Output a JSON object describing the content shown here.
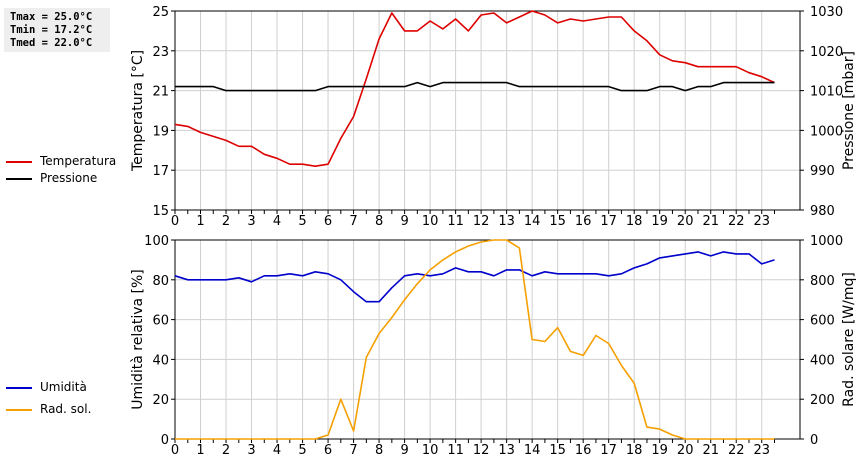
{
  "stats": {
    "tmax": "Tmax = 25.0°C",
    "tmin": "Tmin = 17.2°C",
    "tmed": "Tmed = 22.0°C"
  },
  "legend_top": [
    {
      "label": "Temperatura",
      "color": "#dd0000"
    },
    {
      "label": "Pressione",
      "color": "#000000"
    }
  ],
  "legend_bottom": [
    {
      "label": "Umidità",
      "color": "#0000cc"
    },
    {
      "label": "Rad. sol.",
      "color": "#f5a000"
    }
  ],
  "chart_data": [
    {
      "type": "line",
      "title": "",
      "xlabel": "",
      "ylabel": "Temperatura [°C]",
      "y2label": "Pressione [mbar]",
      "xlim": [
        0,
        24.5
      ],
      "xticks": [
        "0",
        "1",
        "2",
        "3",
        "4",
        "5",
        "6",
        "7",
        "8",
        "9",
        "10",
        "11",
        "12",
        "13",
        "14",
        "15",
        "16",
        "17",
        "18",
        "19",
        "20",
        "21",
        "22",
        "23"
      ],
      "ylim": [
        15,
        25
      ],
      "yticks": [
        "15",
        "17",
        "19",
        "21",
        "23",
        "25"
      ],
      "y2lim": [
        980,
        1030
      ],
      "y2ticks": [
        "980",
        "990",
        "1000",
        "1010",
        "1020",
        "1030"
      ],
      "grid": true,
      "series": [
        {
          "name": "Temperatura",
          "axis": "left",
          "color": "#dd0000",
          "x": [
            0,
            0.5,
            1,
            1.5,
            2,
            2.5,
            3,
            3.5,
            4,
            4.5,
            5,
            5.5,
            6,
            6.5,
            7,
            7.5,
            8,
            8.5,
            9,
            9.5,
            10,
            10.5,
            11,
            11.5,
            12,
            12.5,
            13,
            13.5,
            14,
            14.5,
            15,
            15.5,
            16,
            16.5,
            17,
            17.5,
            18,
            18.5,
            19,
            19.5,
            20,
            20.5,
            21,
            21.5,
            22,
            22.5,
            23,
            23.5
          ],
          "y": [
            19.3,
            19.2,
            18.9,
            18.7,
            18.5,
            18.2,
            18.2,
            17.8,
            17.6,
            17.3,
            17.3,
            17.2,
            17.3,
            18.6,
            19.7,
            21.6,
            23.6,
            24.9,
            24.0,
            24.0,
            24.5,
            24.1,
            24.6,
            24.0,
            24.8,
            24.9,
            24.4,
            24.7,
            25.0,
            24.8,
            24.4,
            24.6,
            24.5,
            24.6,
            24.7,
            24.7,
            24.0,
            23.5,
            22.8,
            22.5,
            22.4,
            22.2,
            22.2,
            22.2,
            22.2,
            21.9,
            21.7,
            21.4
          ]
        },
        {
          "name": "Pressione",
          "axis": "right",
          "color": "#000000",
          "x": [
            0,
            0.5,
            1,
            1.5,
            2,
            2.5,
            3,
            3.5,
            4,
            4.5,
            5,
            5.5,
            6,
            6.5,
            7,
            7.5,
            8,
            8.5,
            9,
            9.5,
            10,
            10.5,
            11,
            11.5,
            12,
            12.5,
            13,
            13.5,
            14,
            14.5,
            15,
            15.5,
            16,
            16.5,
            17,
            17.5,
            18,
            18.5,
            19,
            19.5,
            20,
            20.5,
            21,
            21.5,
            22,
            22.5,
            23,
            23.5
          ],
          "y": [
            1011,
            1011,
            1011,
            1011,
            1010,
            1010,
            1010,
            1010,
            1010,
            1010,
            1010,
            1010,
            1011,
            1011,
            1011,
            1011,
            1011,
            1011,
            1011,
            1012,
            1011,
            1012,
            1012,
            1012,
            1012,
            1012,
            1012,
            1011,
            1011,
            1011,
            1011,
            1011,
            1011,
            1011,
            1011,
            1010,
            1010,
            1010,
            1011,
            1011,
            1010,
            1011,
            1011,
            1012,
            1012,
            1012,
            1012,
            1012
          ]
        }
      ]
    },
    {
      "type": "line",
      "title": "",
      "xlabel": "",
      "ylabel": "Umidità relativa [%]",
      "y2label": "Rad. solare [W/mq]",
      "xlim": [
        0,
        24.5
      ],
      "xticks": [
        "0",
        "1",
        "2",
        "3",
        "4",
        "5",
        "6",
        "7",
        "8",
        "9",
        "10",
        "11",
        "12",
        "13",
        "14",
        "15",
        "16",
        "17",
        "18",
        "19",
        "20",
        "21",
        "22",
        "23"
      ],
      "ylim": [
        0,
        100
      ],
      "yticks": [
        "0",
        "20",
        "40",
        "60",
        "80",
        "100"
      ],
      "y2lim": [
        0,
        1000
      ],
      "y2ticks": [
        "0",
        "200",
        "400",
        "600",
        "800",
        "1000"
      ],
      "grid": true,
      "series": [
        {
          "name": "Umidità",
          "axis": "left",
          "color": "#0000cc",
          "x": [
            0,
            0.5,
            1,
            1.5,
            2,
            2.5,
            3,
            3.5,
            4,
            4.5,
            5,
            5.5,
            6,
            6.5,
            7,
            7.5,
            8,
            8.5,
            9,
            9.5,
            10,
            10.5,
            11,
            11.5,
            12,
            12.5,
            13,
            13.5,
            14,
            14.5,
            15,
            15.5,
            16,
            16.5,
            17,
            17.5,
            18,
            18.5,
            19,
            19.5,
            20,
            20.5,
            21,
            21.5,
            22,
            22.5,
            23,
            23.5
          ],
          "y": [
            82,
            80,
            80,
            80,
            80,
            81,
            79,
            82,
            82,
            83,
            82,
            84,
            83,
            80,
            74,
            69,
            69,
            76,
            82,
            83,
            82,
            83,
            86,
            84,
            84,
            82,
            85,
            85,
            82,
            84,
            83,
            83,
            83,
            83,
            82,
            83,
            86,
            88,
            91,
            92,
            93,
            94,
            92,
            94,
            93,
            93,
            88,
            90
          ]
        },
        {
          "name": "Rad. sol.",
          "axis": "right",
          "color": "#f5a000",
          "x": [
            0,
            0.5,
            1,
            1.5,
            2,
            2.5,
            3,
            3.5,
            4,
            4.5,
            5,
            5.5,
            6,
            6.5,
            7,
            7.5,
            8,
            8.5,
            9,
            9.5,
            10,
            10.5,
            11,
            11.5,
            12,
            12.5,
            13,
            13.5,
            14,
            14.5,
            15,
            15.5,
            16,
            16.5,
            17,
            17.5,
            18,
            18.5,
            19,
            19.5,
            20,
            20.5,
            21,
            21.5,
            22,
            22.5,
            23,
            23.5
          ],
          "y": [
            0,
            0,
            0,
            0,
            0,
            0,
            0,
            0,
            0,
            0,
            0,
            0,
            20,
            200,
            40,
            410,
            530,
            610,
            700,
            780,
            850,
            900,
            940,
            970,
            990,
            1000,
            1000,
            960,
            500,
            490,
            560,
            440,
            420,
            520,
            480,
            370,
            280,
            60,
            50,
            20,
            0,
            0,
            0,
            0,
            0,
            0,
            0,
            0
          ]
        }
      ]
    }
  ]
}
